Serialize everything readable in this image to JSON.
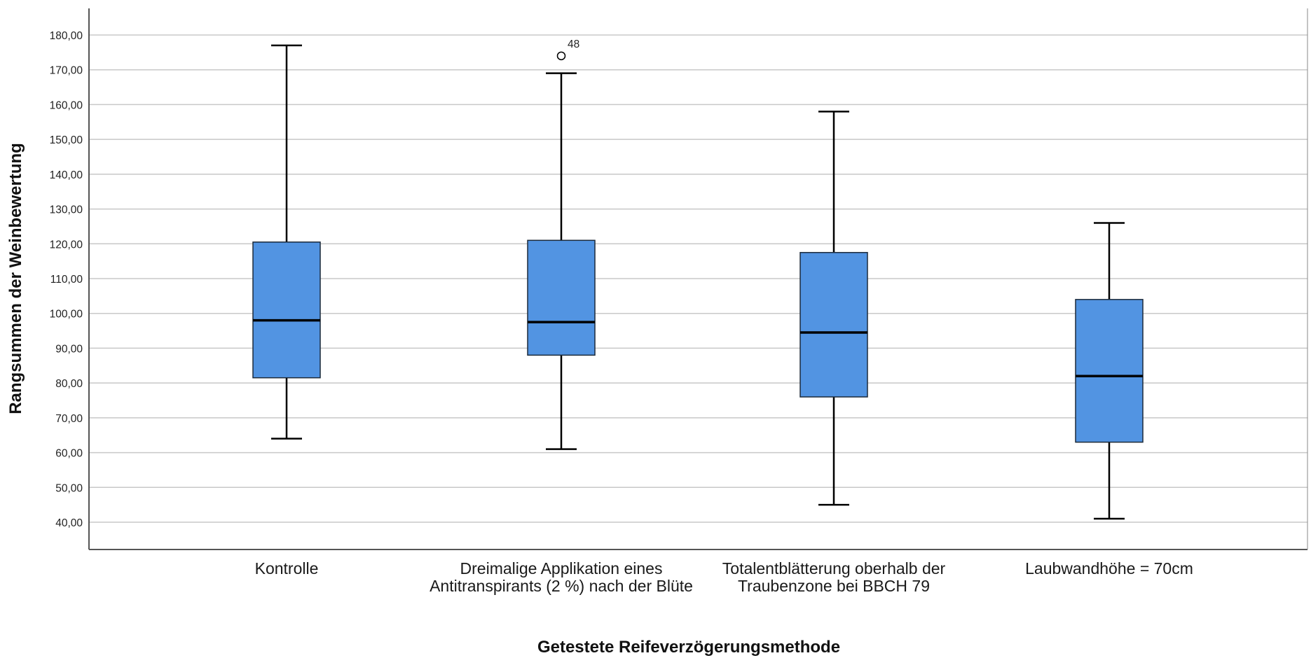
{
  "chart_data": {
    "type": "boxplot",
    "xlabel": "Getestete Reifeverzögerungsmethode",
    "ylabel": "Rangsummen der Weinbewertung",
    "ylim": [
      32,
      185
    ],
    "yticks": [
      "40,00",
      "50,00",
      "60,00",
      "70,00",
      "80,00",
      "90,00",
      "100,00",
      "110,00",
      "120,00",
      "130,00",
      "140,00",
      "150,00",
      "160,00",
      "170,00",
      "180,00"
    ],
    "ytick_values": [
      40,
      50,
      60,
      70,
      80,
      90,
      100,
      110,
      120,
      130,
      140,
      150,
      160,
      170,
      180
    ],
    "grid": true,
    "box_color": "#5294e2",
    "categories": [
      "Kontrolle",
      "Dreimalige Applikation eines Antitranspirants (2 %) nach der Blüte",
      "Totalentblätterung oberhalb der Traubenzone bei BBCH 79",
      "Laubwandhöhe = 70cm"
    ],
    "boxes": [
      {
        "min": 64,
        "q1": 81.5,
        "median": 98,
        "q3": 120.5,
        "max": 177,
        "outliers": []
      },
      {
        "min": 61,
        "q1": 88,
        "median": 97.5,
        "q3": 121,
        "max": 169,
        "outliers": [
          {
            "value": 174,
            "label": "48"
          }
        ]
      },
      {
        "min": 45,
        "q1": 76,
        "median": 94.5,
        "q3": 117.5,
        "max": 158,
        "outliers": []
      },
      {
        "min": 41,
        "q1": 63,
        "median": 82,
        "q3": 104,
        "max": 126,
        "outliers": []
      }
    ]
  }
}
